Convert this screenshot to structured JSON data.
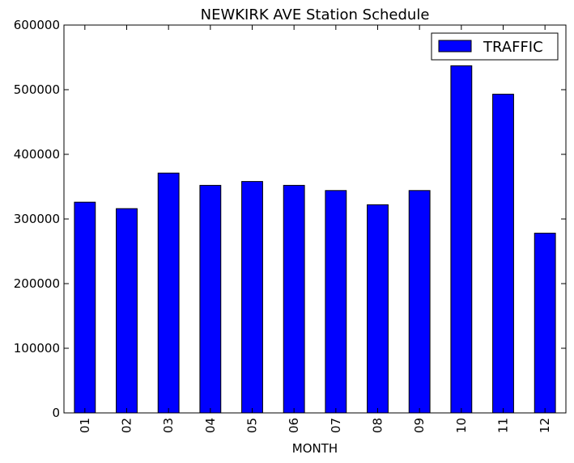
{
  "chart_data": {
    "type": "bar",
    "title": "NEWKIRK AVE Station Schedule",
    "xlabel": "MONTH",
    "ylabel": "",
    "categories": [
      "01",
      "02",
      "03",
      "04",
      "05",
      "06",
      "07",
      "08",
      "09",
      "10",
      "11",
      "12"
    ],
    "series": [
      {
        "name": "TRAFFIC",
        "values": [
          326000,
          316000,
          371000,
          352000,
          358000,
          352000,
          344000,
          322000,
          344000,
          537000,
          493000,
          278000
        ]
      }
    ],
    "ylim": [
      0,
      600000
    ],
    "yticks": [
      "0",
      "100000",
      "200000",
      "300000",
      "400000",
      "500000",
      "600000"
    ],
    "grid": false,
    "legend_position": "top-right",
    "bar_color": "#0000ff",
    "edge_color": "#000000"
  }
}
